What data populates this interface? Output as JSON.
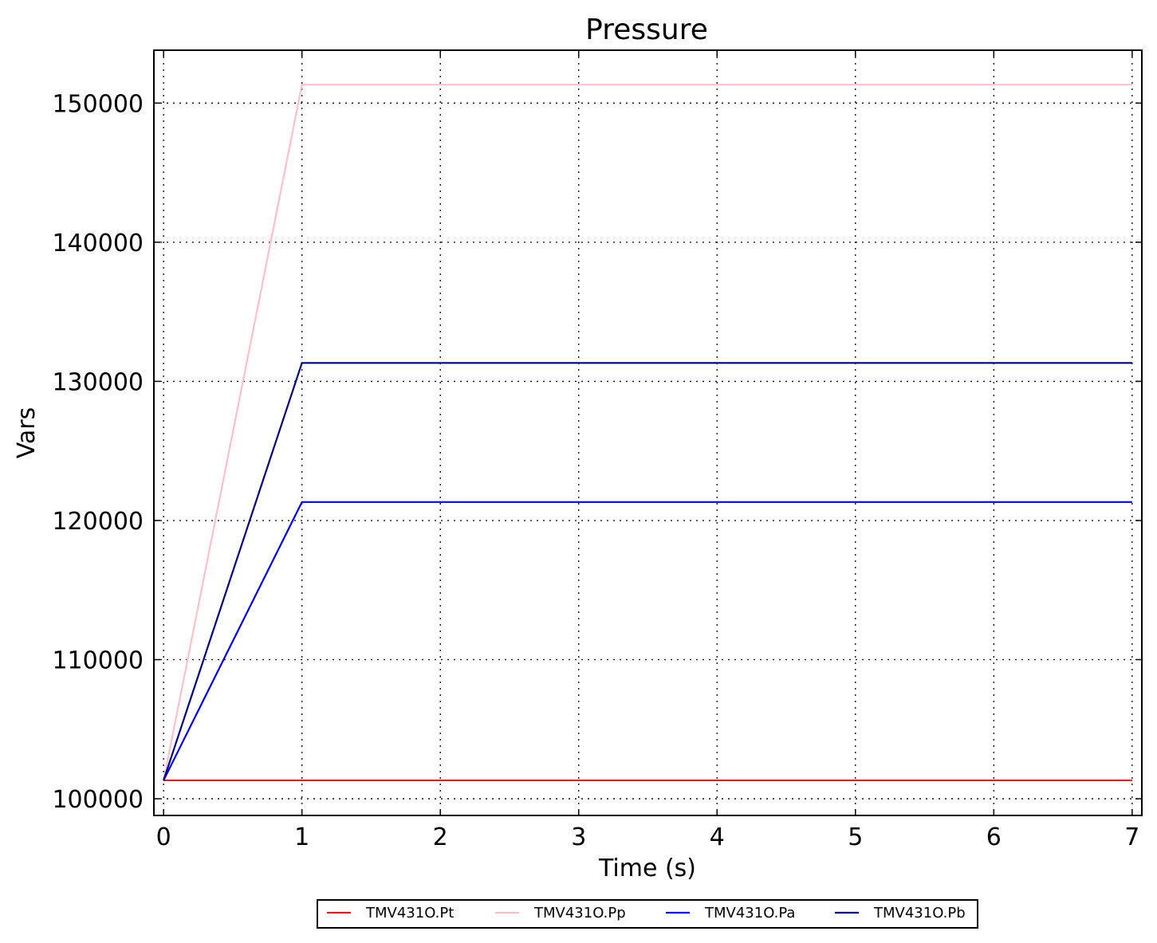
{
  "chart_data": {
    "type": "line",
    "title": "Pressure",
    "xlabel": "Time (s)",
    "ylabel": "Vars",
    "xlim": [
      -0.07,
      7.07
    ],
    "ylim": [
      98800,
      153800
    ],
    "xticks": [
      0,
      1,
      2,
      3,
      4,
      5,
      6,
      7
    ],
    "xtick_labels": [
      "0",
      "1",
      "2",
      "3",
      "4",
      "5",
      "6",
      "7"
    ],
    "yticks": [
      100000,
      110000,
      120000,
      130000,
      140000,
      150000
    ],
    "ytick_labels": [
      "100000",
      "110000",
      "120000",
      "130000",
      "140000",
      "150000"
    ],
    "grid": true,
    "legend_position": "bottom-center",
    "series": [
      {
        "name": "TMV431O.Pt",
        "color": "#e31a1c",
        "x": [
          0,
          7
        ],
        "y": [
          101325,
          101325
        ]
      },
      {
        "name": "TMV431O.Pp",
        "color": "#ffc0cb",
        "x": [
          0,
          1,
          7
        ],
        "y": [
          101325,
          151325,
          151325
        ]
      },
      {
        "name": "TMV431O.Pa",
        "color": "#0000ee",
        "x": [
          0,
          1,
          7
        ],
        "y": [
          101325,
          121325,
          121325
        ]
      },
      {
        "name": "TMV431O.Pb",
        "color": "#000080",
        "x": [
          0,
          1,
          7
        ],
        "y": [
          101325,
          131325,
          131325
        ]
      }
    ]
  }
}
